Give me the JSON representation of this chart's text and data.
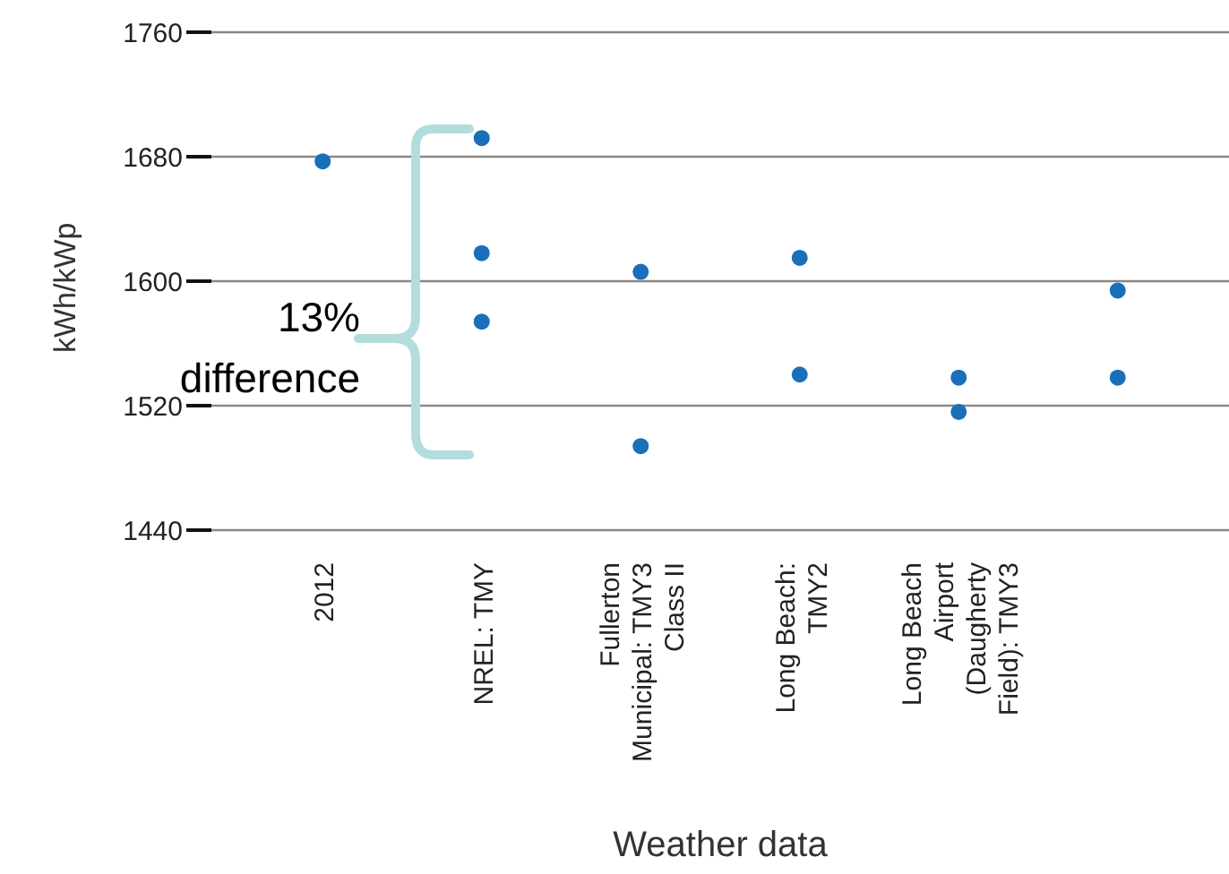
{
  "chart_data": {
    "type": "scatter",
    "xlabel": "Weather data",
    "ylabel": "kWh/kWp",
    "categories": [
      "2012",
      "NREL: TMY",
      "Fullerton Municipal: TMY3 Class II",
      "Long Beach: TMY2",
      "Long Beach Airport (Daugherty Field): TMY3",
      null
    ],
    "series": [
      {
        "color": "#1a6fba",
        "values": [
          1677,
          1692,
          1606,
          1615,
          1538,
          1594
        ]
      },
      {
        "color": "#1a6fba",
        "values": [
          null,
          1618,
          1494,
          1540,
          1516,
          1538
        ]
      },
      {
        "color": "#1a6fba",
        "values": [
          null,
          1574,
          null,
          null,
          null,
          null
        ]
      }
    ],
    "ylim": [
      1440,
      1760
    ],
    "yticks": [
      1440,
      1520,
      1600,
      1680,
      1760
    ],
    "grid": "y",
    "marker": "circle",
    "legend": false,
    "annotations": [
      "13% difference"
    ]
  }
}
